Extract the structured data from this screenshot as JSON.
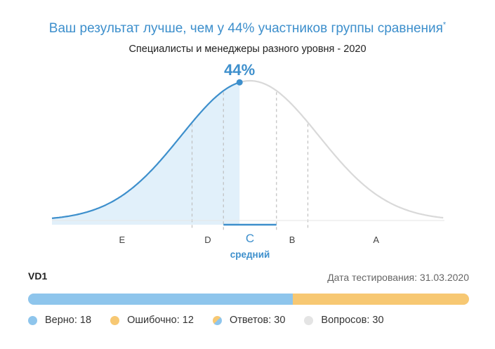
{
  "headline": {
    "text": "Ваш результат лучше, чем у 44% участников группы сравнения",
    "mark": "*"
  },
  "subtitle": "Специалисты и менеджеры разного уровня - 2020",
  "colors": {
    "accent": "#3d8fcc",
    "fill": "#e1f0fa",
    "curve_grey": "#d9d9d9",
    "correct": "#8ec5ec",
    "wrong": "#f7c873",
    "total": "#e4e4e4"
  },
  "chart_data": {
    "type": "area",
    "distribution": "normal",
    "percentile": 44,
    "percentile_label": "44%",
    "bands": [
      {
        "label": "E",
        "from": 0,
        "to": 20
      },
      {
        "label": "D",
        "from": 20,
        "to": 35
      },
      {
        "label": "C",
        "from": 35,
        "to": 65
      },
      {
        "label": "B",
        "from": 65,
        "to": 80
      },
      {
        "label": "A",
        "from": 80,
        "to": 100
      }
    ],
    "current_band": "C",
    "current_band_caption": "средний"
  },
  "test": {
    "name": "VD1",
    "date_label": "Дата тестирования: 31.03.2020"
  },
  "results": {
    "correct": 18,
    "wrong": 12,
    "answered": 30,
    "questions": 30
  },
  "legend": {
    "correct": "Верно: 18",
    "wrong": "Ошибочно: 12",
    "answered": "Ответов: 30",
    "questions": "Вопросов: 30"
  }
}
